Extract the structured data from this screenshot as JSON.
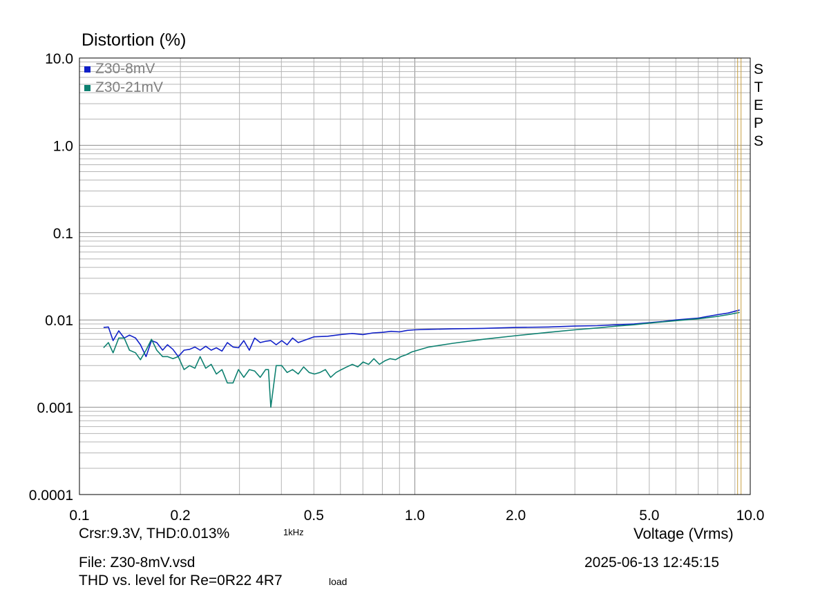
{
  "chart_data": {
    "type": "line",
    "title": "Distortion (%)",
    "xlabel": "Voltage (Vrms)",
    "ylabel": "Distortion (%)",
    "x_scale": "log",
    "y_scale": "log",
    "xlim": [
      0.1,
      10.0
    ],
    "ylim": [
      0.0001,
      10.0
    ],
    "x_ticks": [
      "0.1",
      "0.2",
      "0.5",
      "1.0",
      "2.0",
      "5.0",
      "10.0"
    ],
    "y_ticks": [
      "10.0",
      "1.0",
      "0.1",
      "0.01",
      "0.001",
      "0.0001"
    ],
    "grid": true,
    "legend_position": "top-left",
    "cursor_x": 9.3,
    "series": [
      {
        "name": "Z30-8mV",
        "color": "#1020c8",
        "x": [
          0.118,
          0.122,
          0.126,
          0.131,
          0.136,
          0.141,
          0.147,
          0.152,
          0.158,
          0.164,
          0.17,
          0.177,
          0.183,
          0.19,
          0.197,
          0.205,
          0.213,
          0.221,
          0.229,
          0.238,
          0.247,
          0.256,
          0.266,
          0.276,
          0.287,
          0.298,
          0.309,
          0.321,
          0.333,
          0.346,
          0.359,
          0.372,
          0.386,
          0.401,
          0.416,
          0.432,
          0.449,
          0.466,
          0.5,
          0.55,
          0.6,
          0.65,
          0.7,
          0.75,
          0.8,
          0.85,
          0.9,
          0.95,
          1.0,
          1.1,
          1.3,
          1.6,
          2.0,
          2.5,
          3.0,
          3.5,
          4.0,
          4.5,
          5.0,
          5.5,
          6.0,
          7.0,
          8.0,
          8.6,
          9.3
        ],
        "y": [
          0.0082,
          0.0083,
          0.0058,
          0.0075,
          0.0062,
          0.0067,
          0.0062,
          0.0052,
          0.0038,
          0.0058,
          0.0055,
          0.0045,
          0.0052,
          0.0046,
          0.0038,
          0.0045,
          0.0046,
          0.0049,
          0.0045,
          0.005,
          0.0045,
          0.0048,
          0.0044,
          0.0055,
          0.0049,
          0.0048,
          0.0058,
          0.0045,
          0.0062,
          0.0055,
          0.0057,
          0.0058,
          0.0052,
          0.0058,
          0.0052,
          0.0062,
          0.0055,
          0.0058,
          0.0064,
          0.0065,
          0.0068,
          0.007,
          0.0068,
          0.0071,
          0.0072,
          0.0074,
          0.0073,
          0.0076,
          0.0077,
          0.0078,
          0.0079,
          0.008,
          0.0082,
          0.0083,
          0.0085,
          0.0086,
          0.0088,
          0.009,
          0.0093,
          0.0096,
          0.01,
          0.0105,
          0.0115,
          0.012,
          0.013
        ]
      },
      {
        "name": "Z30-21mV",
        "color": "#0d8070",
        "x": [
          0.118,
          0.122,
          0.126,
          0.131,
          0.136,
          0.141,
          0.147,
          0.152,
          0.158,
          0.164,
          0.17,
          0.177,
          0.183,
          0.19,
          0.197,
          0.205,
          0.213,
          0.221,
          0.229,
          0.238,
          0.247,
          0.256,
          0.266,
          0.276,
          0.287,
          0.298,
          0.309,
          0.321,
          0.333,
          0.346,
          0.359,
          0.366,
          0.372,
          0.386,
          0.401,
          0.416,
          0.432,
          0.449,
          0.466,
          0.484,
          0.502,
          0.521,
          0.541,
          0.561,
          0.582,
          0.604,
          0.627,
          0.651,
          0.676,
          0.701,
          0.728,
          0.755,
          0.784,
          0.814,
          0.844,
          0.876,
          0.909,
          0.944,
          0.98,
          1.1,
          1.3,
          1.6,
          2.0,
          2.5,
          3.0,
          3.5,
          4.0,
          4.5,
          5.0,
          5.5,
          6.0,
          7.0,
          8.0,
          8.6,
          9.3
        ],
        "y": [
          0.0048,
          0.0055,
          0.0042,
          0.0062,
          0.0062,
          0.0045,
          0.0042,
          0.0035,
          0.0045,
          0.006,
          0.0045,
          0.0038,
          0.0038,
          0.0036,
          0.0038,
          0.0027,
          0.003,
          0.0028,
          0.0038,
          0.0028,
          0.0031,
          0.0024,
          0.0027,
          0.0019,
          0.0019,
          0.0027,
          0.0022,
          0.0027,
          0.0026,
          0.0022,
          0.0027,
          0.0027,
          0.001,
          0.003,
          0.003,
          0.0025,
          0.0027,
          0.0024,
          0.0029,
          0.0025,
          0.0024,
          0.0025,
          0.0027,
          0.0022,
          0.0025,
          0.0027,
          0.0029,
          0.0031,
          0.0029,
          0.0033,
          0.0031,
          0.0036,
          0.0031,
          0.0034,
          0.0036,
          0.0035,
          0.0038,
          0.004,
          0.0043,
          0.0049,
          0.0054,
          0.006,
          0.0066,
          0.0072,
          0.0077,
          0.0081,
          0.0085,
          0.0088,
          0.0092,
          0.0095,
          0.0098,
          0.0103,
          0.011,
          0.0115,
          0.0122
        ]
      }
    ]
  },
  "cursor_readout": "Crsr:9.3V, THD:0.013%",
  "freq_label": "1kHz",
  "file_label": "File: Z30-8mV.vsd",
  "timestamp": "2025-06-13  12:45:15",
  "description": "THD vs. level for Re=0R22 4R7",
  "load_label": "load",
  "steps_label": "STEPS",
  "colors": {
    "grid": "#b4b4b4",
    "cursor": "#c8a040",
    "frame": "#000000"
  }
}
